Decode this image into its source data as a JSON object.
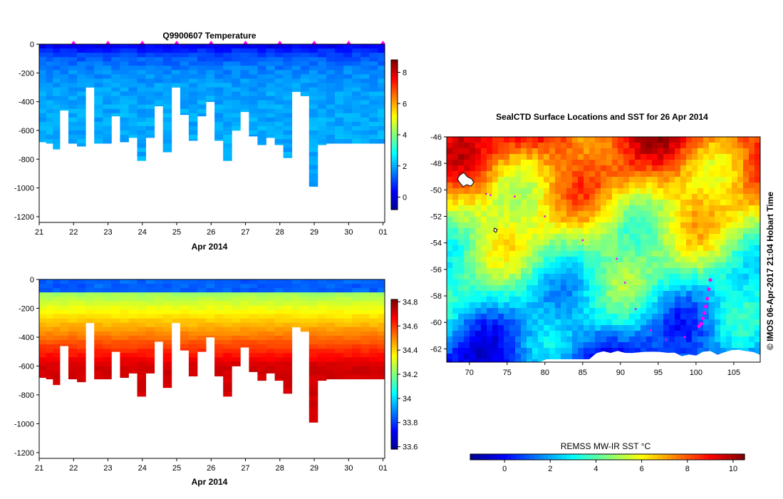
{
  "chart_data": [
    {
      "type": "heatmap",
      "title": "Q9900607  Temperature",
      "xlabel": "Apr 2014",
      "x_ticks": [
        "21",
        "22",
        "23",
        "24",
        "25",
        "26",
        "27",
        "28",
        "29",
        "30",
        "01"
      ],
      "y_ticks": [
        0,
        -200,
        -400,
        -600,
        -800,
        -1000,
        -1200
      ],
      "ylim": [
        -1240,
        0
      ],
      "colorbar_ticks": [
        0,
        2,
        4,
        6,
        8
      ],
      "colorbar_range": [
        -0.8,
        8.8
      ],
      "profile_times": [
        21.0,
        21.2,
        21.4,
        21.6,
        21.85,
        22.1,
        22.35,
        22.6,
        22.85,
        23.1,
        23.35,
        23.6,
        23.85,
        24.1,
        24.35,
        24.6,
        24.85,
        25.1,
        25.35,
        25.6,
        25.85,
        26.1,
        26.35,
        26.6,
        26.85,
        27.1,
        27.35,
        27.6,
        27.85,
        28.1,
        28.35,
        28.6,
        28.85,
        29.1,
        29.35,
        29.6,
        29.85,
        30.1,
        30.35,
        30.6,
        30.85
      ],
      "max_depths": [
        -680,
        -690,
        -730,
        -460,
        -690,
        -710,
        -300,
        -690,
        -690,
        -500,
        -680,
        -650,
        -810,
        -650,
        -430,
        -750,
        -300,
        -490,
        -670,
        -500,
        -400,
        -670,
        -810,
        -600,
        -470,
        -640,
        -700,
        -650,
        -700,
        -790,
        -330,
        -360,
        -990,
        -700,
        -690,
        -690,
        -690,
        -690,
        -690,
        -690,
        -690
      ],
      "surface_temperature": 0.3,
      "deep_temperature": 2.0,
      "surface_markers": [
        22,
        23,
        24,
        25,
        26,
        27,
        28,
        29,
        30,
        31
      ]
    },
    {
      "type": "heatmap",
      "title": "",
      "xlabel": "Apr 2014",
      "x_ticks": [
        "21",
        "22",
        "23",
        "24",
        "25",
        "26",
        "27",
        "28",
        "29",
        "30",
        "01"
      ],
      "y_ticks": [
        0,
        -200,
        -400,
        -600,
        -800,
        -1000,
        -1200
      ],
      "ylim": [
        -1240,
        0
      ],
      "colorbar_ticks": [
        33.6,
        33.8,
        34,
        34.2,
        34.4,
        34.6,
        34.8
      ],
      "colorbar_range": [
        33.58,
        34.82
      ],
      "surface_salinity": 33.85,
      "deep_salinity": 34.72
    },
    {
      "type": "heatmap",
      "title": "SealCTD Surface Locations and SST for 26 Apr 2014",
      "x_ticks": [
        70,
        75,
        80,
        85,
        90,
        95,
        100,
        105
      ],
      "y_ticks": [
        -46,
        -48,
        -50,
        -52,
        -54,
        -56,
        -58,
        -60,
        -62
      ],
      "xlim": [
        67,
        108.5
      ],
      "ylim": [
        -63,
        -46
      ],
      "colorbar_label": "REMSS MW-IR SST °C",
      "colorbar_ticks": [
        0,
        2,
        4,
        6,
        8,
        10
      ],
      "colorbar_range": [
        -1.5,
        10.5
      ],
      "sst_at_46S": 8.5,
      "sst_at_63S": 0.5,
      "track_points": [
        [
          101.9,
          -56.8
        ],
        [
          101.7,
          -57.5
        ],
        [
          101.5,
          -58.2
        ],
        [
          101.3,
          -58.8
        ],
        [
          101.1,
          -59.3
        ],
        [
          100.9,
          -59.7
        ],
        [
          100.7,
          -60.1
        ],
        [
          100.4,
          -60.3
        ],
        [
          98.5,
          -61.1
        ],
        [
          96,
          -61.3
        ],
        [
          94,
          -60.6
        ],
        [
          92,
          -59
        ],
        [
          90.6,
          -57
        ],
        [
          89.5,
          -55.2
        ],
        [
          85,
          -53.8
        ],
        [
          80,
          -52
        ],
        [
          76,
          -50.5
        ],
        [
          72.8,
          -50.4
        ],
        [
          72.2,
          -50.3
        ]
      ],
      "credit": "© IMOS 06-Apr-2017 21:04 Hobart Time"
    }
  ],
  "colors": {
    "magenta": "#ff00ff",
    "land_white": "#ffffff",
    "jet": [
      "#00008f",
      "#0000ff",
      "#0080ff",
      "#00ffff",
      "#80ff80",
      "#ffff00",
      "#ff8000",
      "#ff0000",
      "#800000"
    ]
  }
}
